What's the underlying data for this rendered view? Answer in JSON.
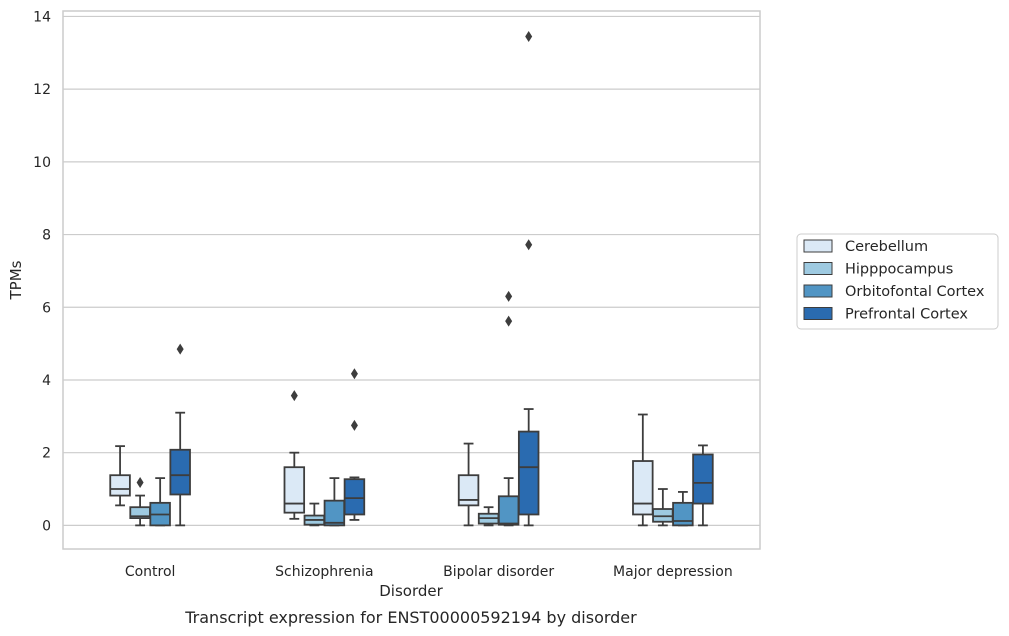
{
  "chart_data": {
    "type": "boxplot",
    "title": "",
    "caption": "Transcript expression for ENST00000592194 by disorder",
    "xlabel": "Disorder",
    "ylabel": "TPMs",
    "ylim": [
      -0.65,
      14.15
    ],
    "yticks": [
      0,
      2,
      4,
      6,
      8,
      10,
      12,
      14
    ],
    "grid": "horizontal",
    "legend_position": "right",
    "categories": [
      "Control",
      "Schizophrenia",
      "Bipolar disorder",
      "Major depression"
    ],
    "series": [
      {
        "name": "Cerebellum",
        "color": "#dbe9f6",
        "boxes": [
          {
            "whisker_low": 0.55,
            "q1": 0.82,
            "median": 1.0,
            "q3": 1.38,
            "whisker_high": 2.18,
            "outliers": []
          },
          {
            "whisker_low": 0.18,
            "q1": 0.35,
            "median": 0.6,
            "q3": 1.6,
            "whisker_high": 2.0,
            "outliers": [
              3.57
            ]
          },
          {
            "whisker_low": 0.0,
            "q1": 0.55,
            "median": 0.7,
            "q3": 1.38,
            "whisker_high": 2.25,
            "outliers": []
          },
          {
            "whisker_low": 0.0,
            "q1": 0.3,
            "median": 0.6,
            "q3": 1.77,
            "whisker_high": 3.05,
            "outliers": []
          }
        ]
      },
      {
        "name": "Hipppocampus",
        "color": "#9ecae1",
        "boxes": [
          {
            "whisker_low": 0.0,
            "q1": 0.2,
            "median": 0.25,
            "q3": 0.5,
            "whisker_high": 0.82,
            "outliers": [
              1.18
            ]
          },
          {
            "whisker_low": 0.0,
            "q1": 0.02,
            "median": 0.15,
            "q3": 0.27,
            "whisker_high": 0.6,
            "outliers": []
          },
          {
            "whisker_low": 0.0,
            "q1": 0.05,
            "median": 0.2,
            "q3": 0.32,
            "whisker_high": 0.5,
            "outliers": []
          },
          {
            "whisker_low": 0.0,
            "q1": 0.1,
            "median": 0.25,
            "q3": 0.45,
            "whisker_high": 1.0,
            "outliers": []
          }
        ]
      },
      {
        "name": "Orbitofontal Cortex",
        "color": "#5195c4",
        "boxes": [
          {
            "whisker_low": 0.0,
            "q1": 0.0,
            "median": 0.3,
            "q3": 0.62,
            "whisker_high": 1.3,
            "outliers": []
          },
          {
            "whisker_low": 0.0,
            "q1": 0.0,
            "median": 0.07,
            "q3": 0.68,
            "whisker_high": 1.3,
            "outliers": []
          },
          {
            "whisker_low": 0.0,
            "q1": 0.02,
            "median": 0.05,
            "q3": 0.8,
            "whisker_high": 1.3,
            "outliers": [
              5.62,
              6.3
            ]
          },
          {
            "whisker_low": 0.0,
            "q1": 0.0,
            "median": 0.12,
            "q3": 0.62,
            "whisker_high": 0.92,
            "outliers": []
          }
        ]
      },
      {
        "name": "Prefrontal Cortex",
        "color": "#2a6bb0",
        "boxes": [
          {
            "whisker_low": 0.0,
            "q1": 0.85,
            "median": 1.38,
            "q3": 2.08,
            "whisker_high": 3.1,
            "outliers": [
              4.85
            ]
          },
          {
            "whisker_low": 0.15,
            "q1": 0.3,
            "median": 0.75,
            "q3": 1.27,
            "whisker_high": 1.32,
            "outliers": [
              2.75,
              4.17
            ]
          },
          {
            "whisker_low": 0.0,
            "q1": 0.3,
            "median": 1.6,
            "q3": 2.58,
            "whisker_high": 3.2,
            "outliers": [
              7.72,
              13.45
            ]
          },
          {
            "whisker_low": 0.0,
            "q1": 0.6,
            "median": 1.17,
            "q3": 1.95,
            "whisker_high": 2.2,
            "outliers": []
          }
        ]
      }
    ]
  }
}
